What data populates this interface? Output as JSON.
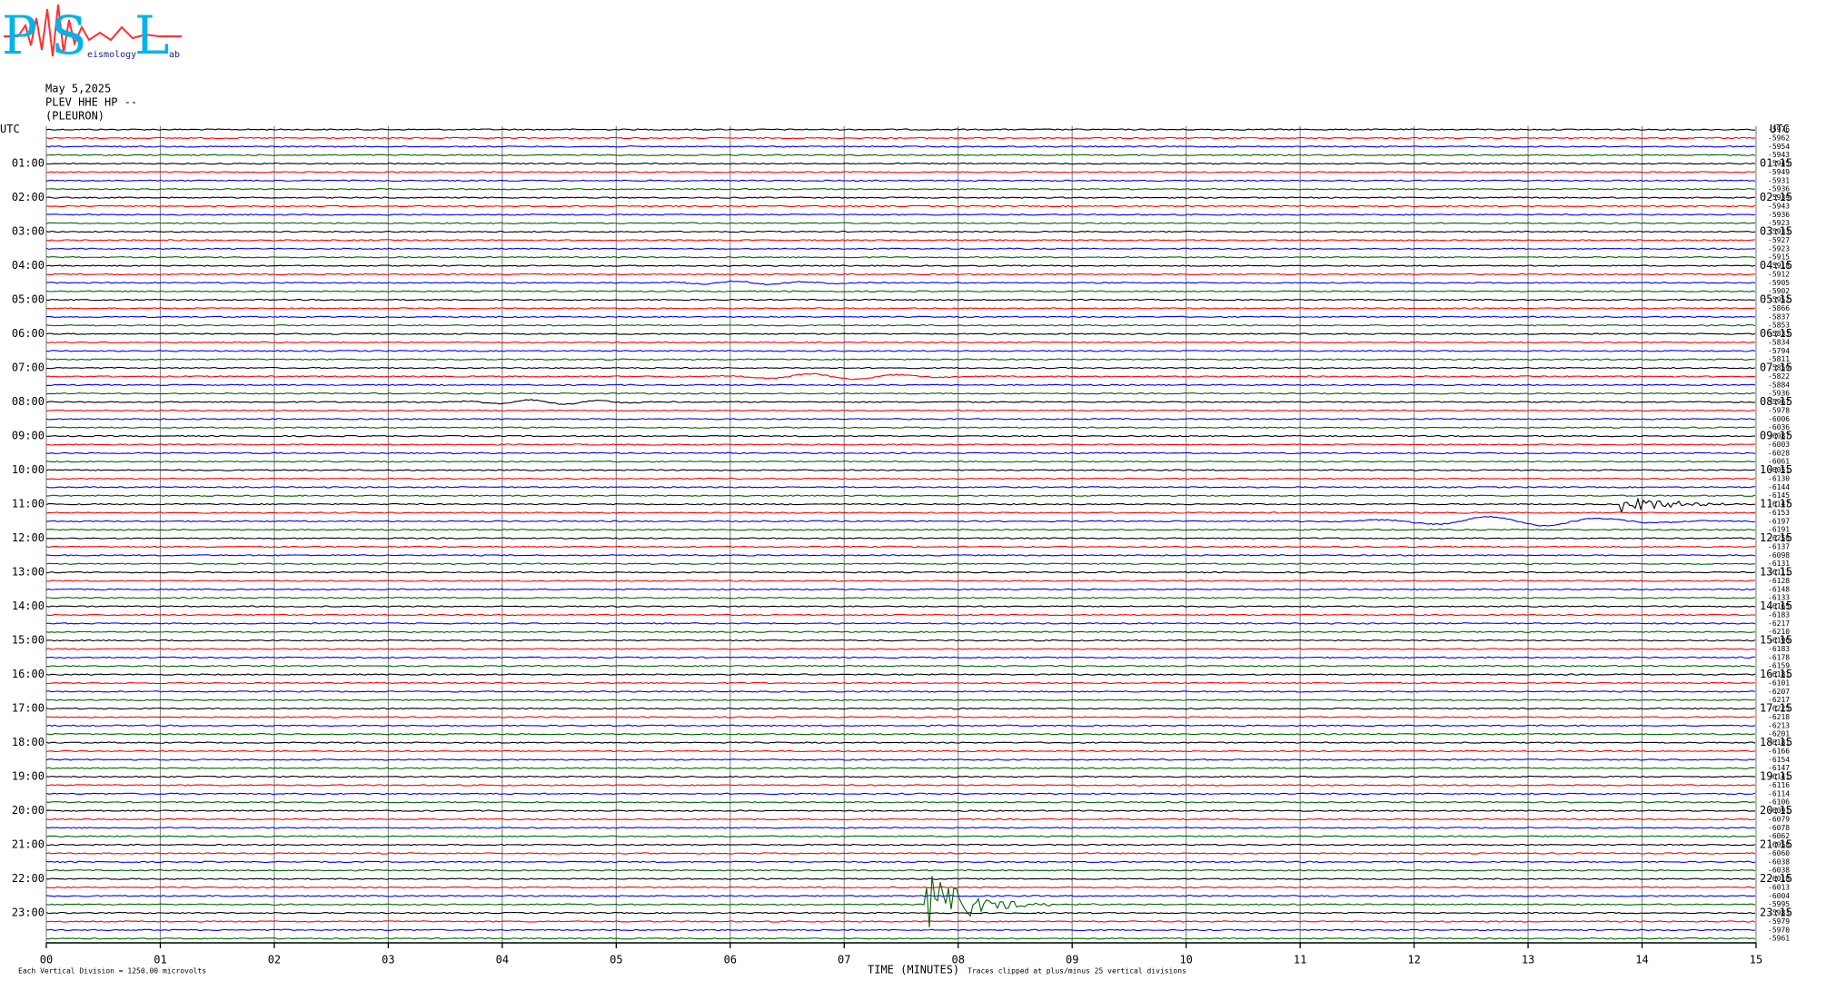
{
  "logo": {
    "letters": [
      "P",
      "S",
      "L"
    ],
    "small_texts": [
      "eismology",
      "ab"
    ]
  },
  "header": {
    "date": "May 5,2025",
    "station": "PLEV HHE HP --",
    "location": "(PLEURON)"
  },
  "chart_data": {
    "type": "helicorder",
    "y_label_left": "UTC",
    "y_label_right": "UTC",
    "row_labels_left": [
      "01:00",
      "02:00",
      "03:00",
      "04:00",
      "05:00",
      "06:00",
      "07:00",
      "08:00",
      "09:00",
      "10:00",
      "11:00",
      "12:00",
      "13:00",
      "14:00",
      "15:00",
      "16:00",
      "17:00",
      "18:00",
      "19:00",
      "20:00",
      "21:00",
      "22:00",
      "23:00"
    ],
    "row_labels_right": [
      "01:15",
      "02:15",
      "03:15",
      "04:15",
      "05:15",
      "06:15",
      "07:15",
      "08:15",
      "09:15",
      "10:15",
      "11:15",
      "12:15",
      "13:15",
      "14:15",
      "15:15",
      "16:15",
      "17:15",
      "18:15",
      "19:15",
      "20:15",
      "21:15",
      "22:15",
      "23:15"
    ],
    "trace_offsets": [
      -5976,
      -5962,
      -5954,
      -5943,
      -5945,
      -5949,
      -5931,
      -5936,
      -5939,
      -5943,
      -5936,
      -5923,
      -5933,
      -5927,
      -5923,
      -5915,
      -5918,
      -5912,
      -5905,
      -5902,
      -5952,
      -5866,
      -5837,
      -5853,
      -5833,
      -5834,
      -5794,
      -5811,
      -5859,
      -5822,
      -5884,
      -5936,
      -5967,
      -5978,
      -6006,
      -6036,
      -6087,
      -6003,
      -6028,
      -6061,
      -6051,
      -6130,
      -6144,
      -6145,
      -6147,
      -6153,
      -6197,
      -6191,
      -6258,
      -6137,
      -6098,
      -6131,
      -6111,
      -6128,
      -6148,
      -6133,
      -6165,
      -6183,
      -6217,
      -6210,
      -6196,
      -6183,
      -6178,
      -6159,
      -6181,
      -6101,
      -6207,
      -6217,
      -6225,
      -6218,
      -6213,
      -6201,
      -6181,
      -6166,
      -6154,
      -6147,
      -6141,
      -6116,
      -6114,
      -6106,
      -6091,
      -6079,
      -6078,
      -6062,
      -6058,
      -6060,
      -6038,
      -6038,
      -6018,
      -6013,
      -6004,
      -5995,
      -5983,
      -5979,
      -5970,
      -5961
    ],
    "colors": [
      "#000000",
      "#ff0000",
      "#0000ff",
      "#006400"
    ],
    "xlim": [
      0,
      15
    ],
    "xticks": [
      {
        "value": 0,
        "label": "00"
      },
      {
        "value": 1,
        "label": "01"
      },
      {
        "value": 2,
        "label": "02"
      },
      {
        "value": 3,
        "label": "03"
      },
      {
        "value": 4,
        "label": "04"
      },
      {
        "value": 5,
        "label": "05"
      },
      {
        "value": 6,
        "label": "06"
      },
      {
        "value": 7,
        "label": "07"
      },
      {
        "value": 8,
        "label": "08"
      },
      {
        "value": 9,
        "label": "09"
      },
      10,
      11,
      12,
      13,
      14,
      15
    ],
    "xlabel": "TIME (MINUTES)",
    "footnote_left": "Each Vertical Division = 1250.00 microvolts",
    "footnote_right": "Traces clipped at plus/minus 25 vertical divisions",
    "grid": true
  }
}
